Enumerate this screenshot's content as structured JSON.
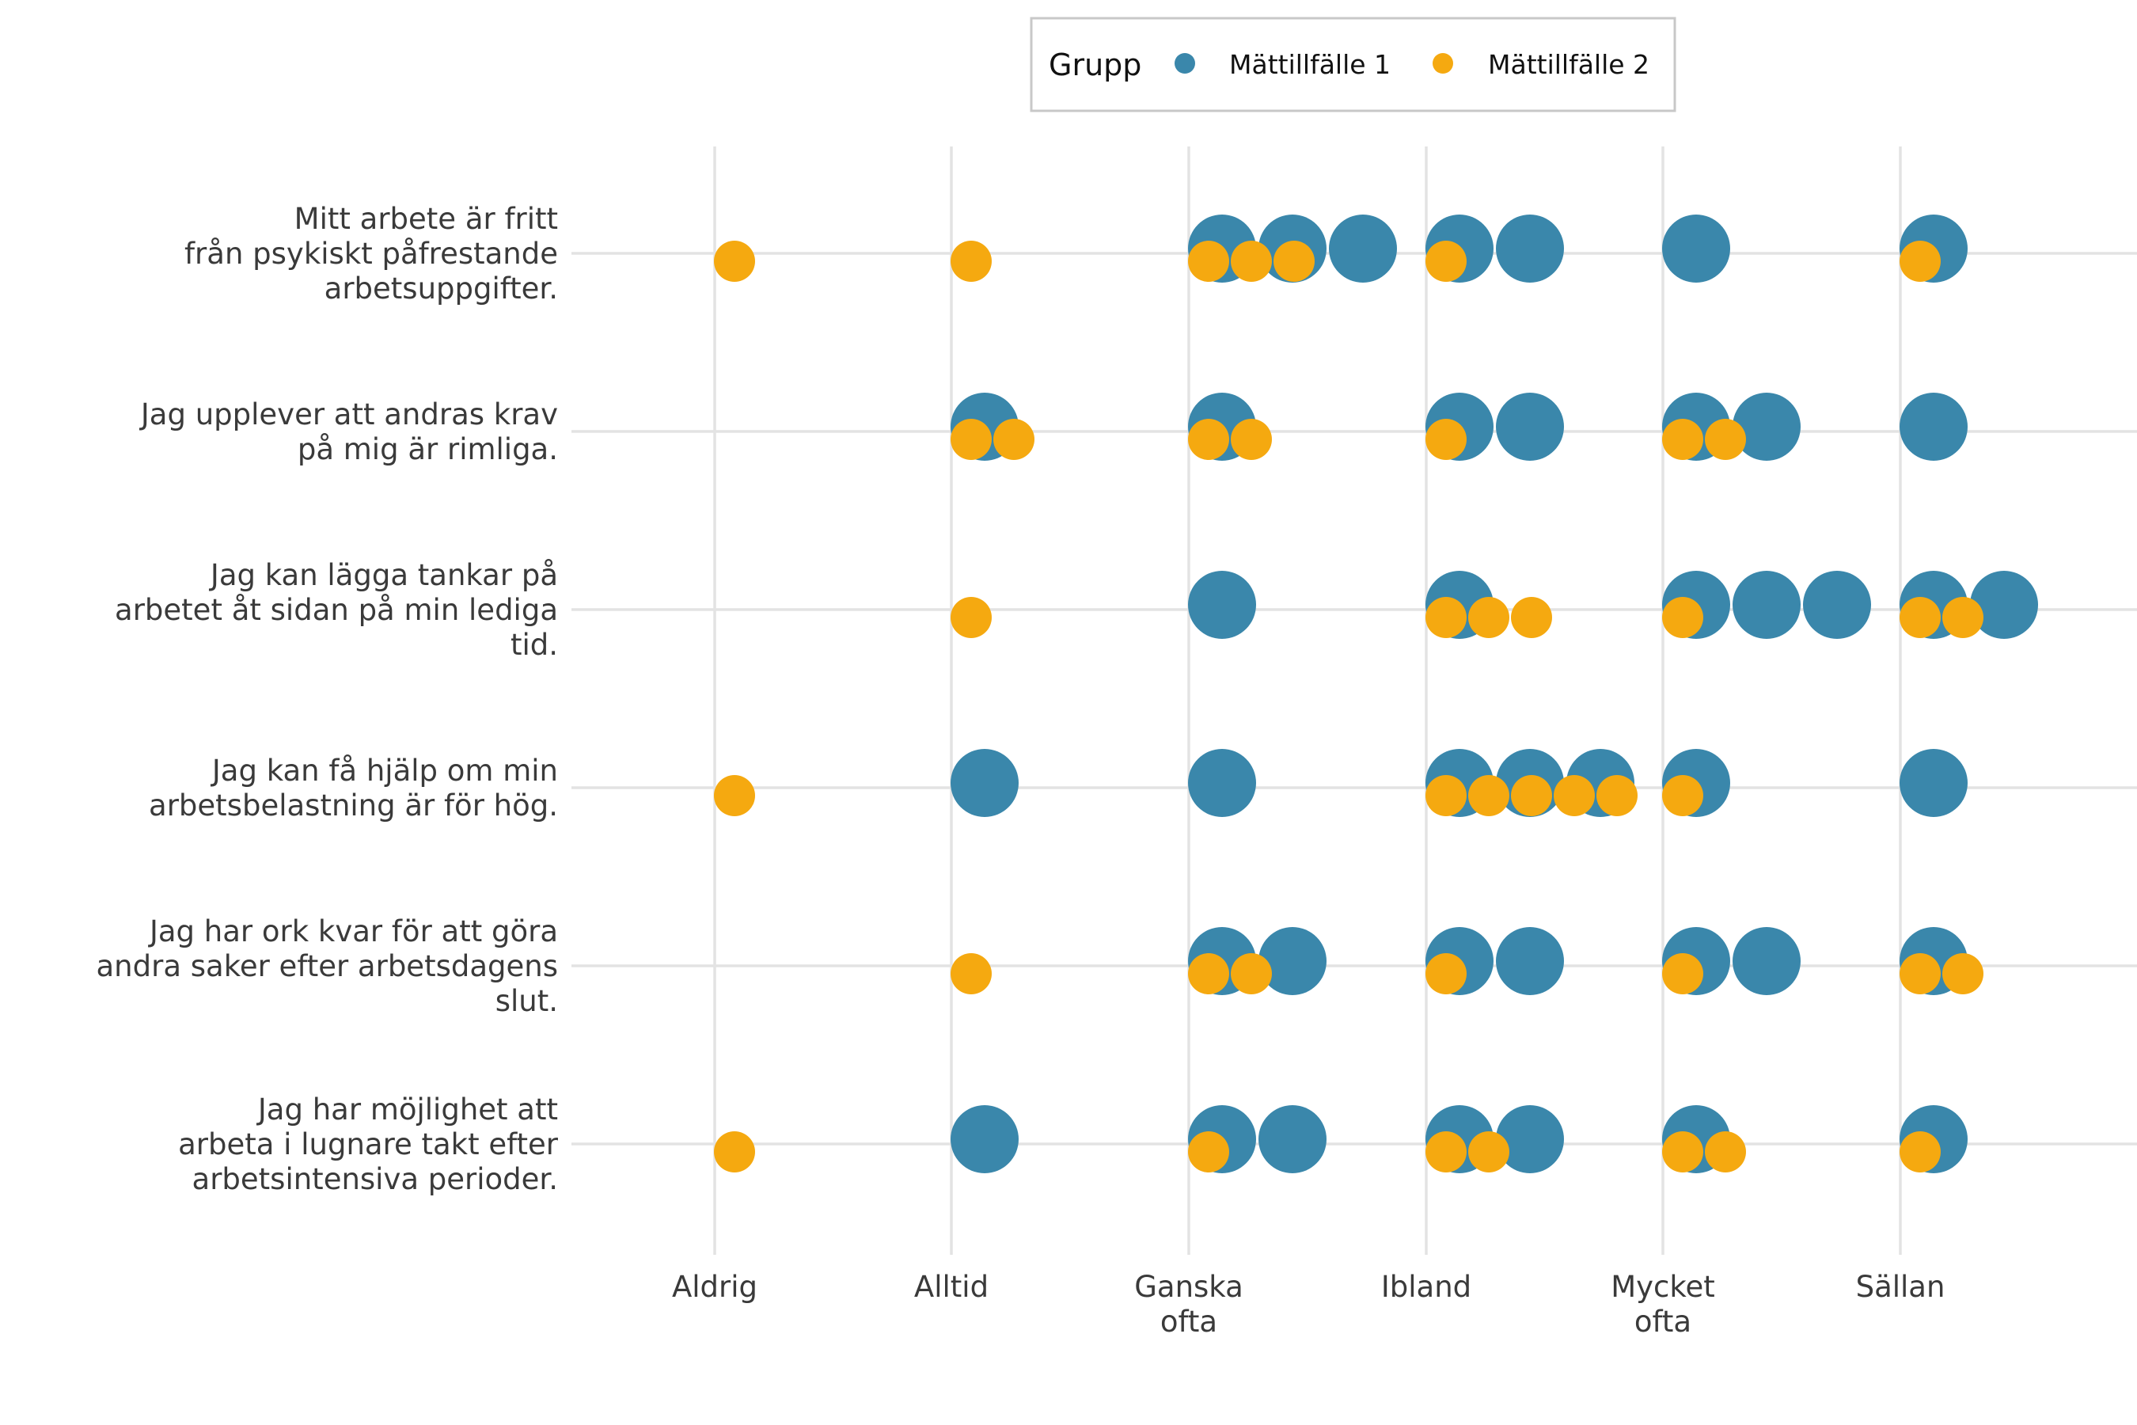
{
  "chart_data": {
    "type": "scatter",
    "legend": {
      "title": "Grupp",
      "position": "top",
      "entries": [
        {
          "name": "Mättillfälle 1",
          "color": "#3a87ab"
        },
        {
          "name": "Mättillfälle 2",
          "color": "#f5a910"
        }
      ]
    },
    "categories_x": [
      "Aldrig",
      "Alltid",
      "Ganska ofta",
      "Ibland",
      "Mycket ofta",
      "Sällan"
    ],
    "categories_y": [
      "Mitt arbete är fritt från psykiskt påfrestande arbetsuppgifter.",
      "Jag upplever att andras krav på mig är rimliga.",
      "Jag kan lägga tankar på arbetet åt sidan på min lediga tid.",
      "Jag kan få hjälp om min arbetsbelastning är för hög.",
      "Jag har ork kvar för att göra andra saker efter arbetsdagens slut.",
      "Jag har möjlighet att arbeta i lugnare takt efter arbetsintensiva perioder."
    ],
    "series": [
      {
        "name": "Mättillfälle 1",
        "color": "#3a87ab",
        "counts": [
          [
            0,
            0,
            3,
            2,
            1,
            1
          ],
          [
            0,
            1,
            1,
            2,
            2,
            1
          ],
          [
            0,
            0,
            1,
            1,
            3,
            2
          ],
          [
            0,
            1,
            1,
            3,
            1,
            1
          ],
          [
            0,
            0,
            2,
            2,
            2,
            1
          ],
          [
            0,
            1,
            2,
            2,
            1,
            1
          ]
        ]
      },
      {
        "name": "Mättillfälle 2",
        "color": "#f5a910",
        "counts": [
          [
            1,
            1,
            3,
            1,
            0,
            1
          ],
          [
            0,
            2,
            2,
            1,
            2,
            0
          ],
          [
            0,
            1,
            0,
            3,
            1,
            2
          ],
          [
            1,
            0,
            0,
            5,
            1,
            0
          ],
          [
            0,
            1,
            2,
            1,
            1,
            2
          ],
          [
            1,
            0,
            1,
            2,
            2,
            1
          ]
        ]
      }
    ],
    "y_labels_display": [
      [
        "Mitt arbete är fritt",
        "från psykiskt påfrestande",
        "arbetsuppgifter."
      ],
      [
        "Jag upplever att andras krav",
        "på mig är rimliga."
      ],
      [
        "Jag kan lägga tankar på",
        "arbetet åt sidan på min lediga",
        "tid."
      ],
      [
        "Jag kan få hjälp om min",
        "arbetsbelastning är för hög."
      ],
      [
        "Jag har ork kvar för att göra",
        "andra saker efter arbetsdagens",
        "slut."
      ],
      [
        "Jag har möjlighet att",
        "arbeta i lugnare takt efter",
        "arbetsintensiva perioder."
      ]
    ],
    "x_labels_display": [
      [
        "Aldrig"
      ],
      [
        "Alltid"
      ],
      [
        "Ganska",
        "ofta"
      ],
      [
        "Ibland"
      ],
      [
        "Mycket",
        "ofta"
      ],
      [
        "Sällan"
      ]
    ],
    "grid": true
  }
}
